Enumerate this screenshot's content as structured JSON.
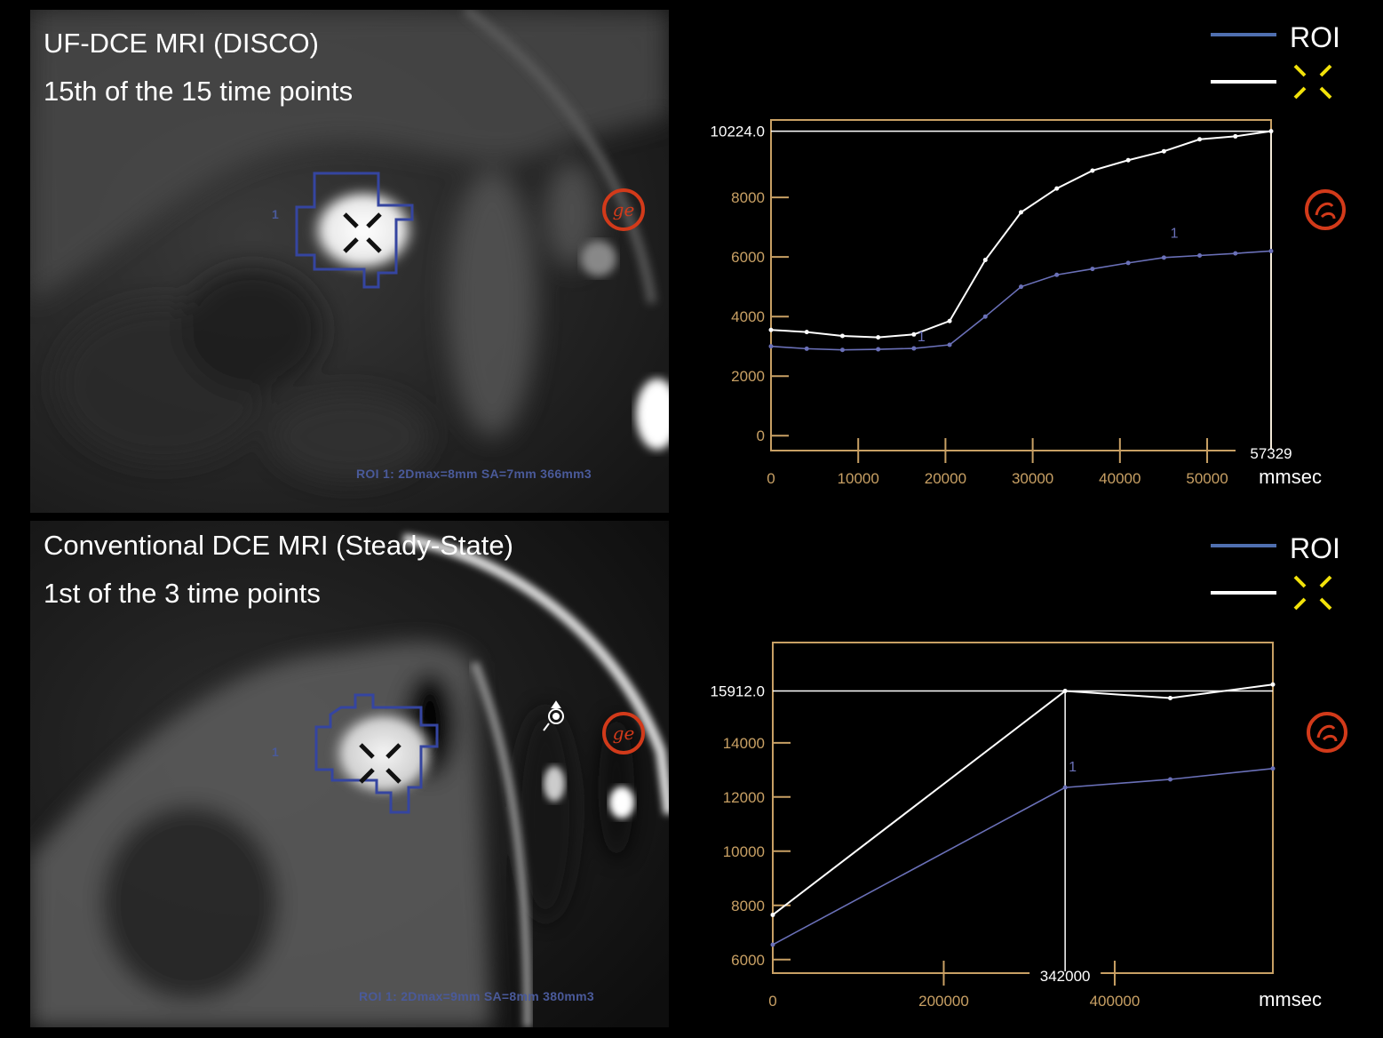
{
  "panels": [
    {
      "title": "UF-DCE MRI (DISCO)",
      "subtitle": "15th of the 15 time points",
      "roi_caption": "ROI 1: 2Dmax=8mm SA=7mm 366mm3",
      "roi_tag": "1"
    },
    {
      "title": "Conventional DCE MRI (Steady-State)",
      "subtitle": "1st of the 3 time points",
      "roi_caption": "ROI 1: 2Dmax=9mm SA=8mm 380mm3",
      "roi_tag": "1"
    }
  ],
  "legend": {
    "roi_label": "ROI",
    "roi_color": "#4f6fb0",
    "marker_color": "#ffffff",
    "marker_icon": "yellow-cross-marker-icon",
    "marker_icon_color": "#f2e20a"
  },
  "colors": {
    "axis": "#c8a064",
    "roi_series": "#6a70b8",
    "marker_series": "#ffffff",
    "ge_logo": "#d23a1a"
  },
  "chart_data": [
    {
      "type": "line",
      "xlabel": "mmsec",
      "x_ticks": [
        "0",
        "10000",
        "20000",
        "30000",
        "40000",
        "50000"
      ],
      "x_end_label": "57329",
      "y_ticks": [
        "0",
        "2000",
        "4000",
        "6000",
        "8000"
      ],
      "y_ref_label": "10224.0",
      "xlim": [
        0,
        57329
      ],
      "ylim": [
        -500,
        10600
      ],
      "x": [
        0,
        4095,
        8190,
        12285,
        16380,
        20475,
        24570,
        28665,
        32760,
        36855,
        40950,
        45045,
        49140,
        53235,
        57329
      ],
      "series": [
        {
          "name": "1",
          "values": [
            3000,
            2920,
            2880,
            2900,
            2930,
            3050,
            4000,
            5000,
            5400,
            5600,
            5800,
            5980,
            6050,
            6120,
            6200
          ]
        },
        {
          "name": "",
          "values": [
            3550,
            3480,
            3350,
            3300,
            3400,
            3850,
            5900,
            7500,
            8300,
            8900,
            9250,
            9550,
            9950,
            10050,
            10224
          ]
        }
      ],
      "series_label": "1",
      "ref_y": 10224.0,
      "ref_x": 57329
    },
    {
      "type": "line",
      "xlabel": "mmsec",
      "x_ticks": [
        "0",
        "200000",
        "400000"
      ],
      "x_cursor_label": "342000",
      "y_ticks": [
        "6000",
        "8000",
        "10000",
        "12000",
        "14000"
      ],
      "y_ref_label": "15912.0",
      "xlim": [
        0,
        585000
      ],
      "ylim": [
        5500,
        17700
      ],
      "x": [
        0,
        342000,
        465000,
        585000
      ],
      "series": [
        {
          "name": "1",
          "values": [
            6550,
            12350,
            12650,
            13050
          ]
        },
        {
          "name": "",
          "values": [
            7650,
            15912,
            15650,
            16150
          ]
        }
      ],
      "series_label": "1",
      "ref_y": 15912.0,
      "ref_x": 342000
    }
  ]
}
